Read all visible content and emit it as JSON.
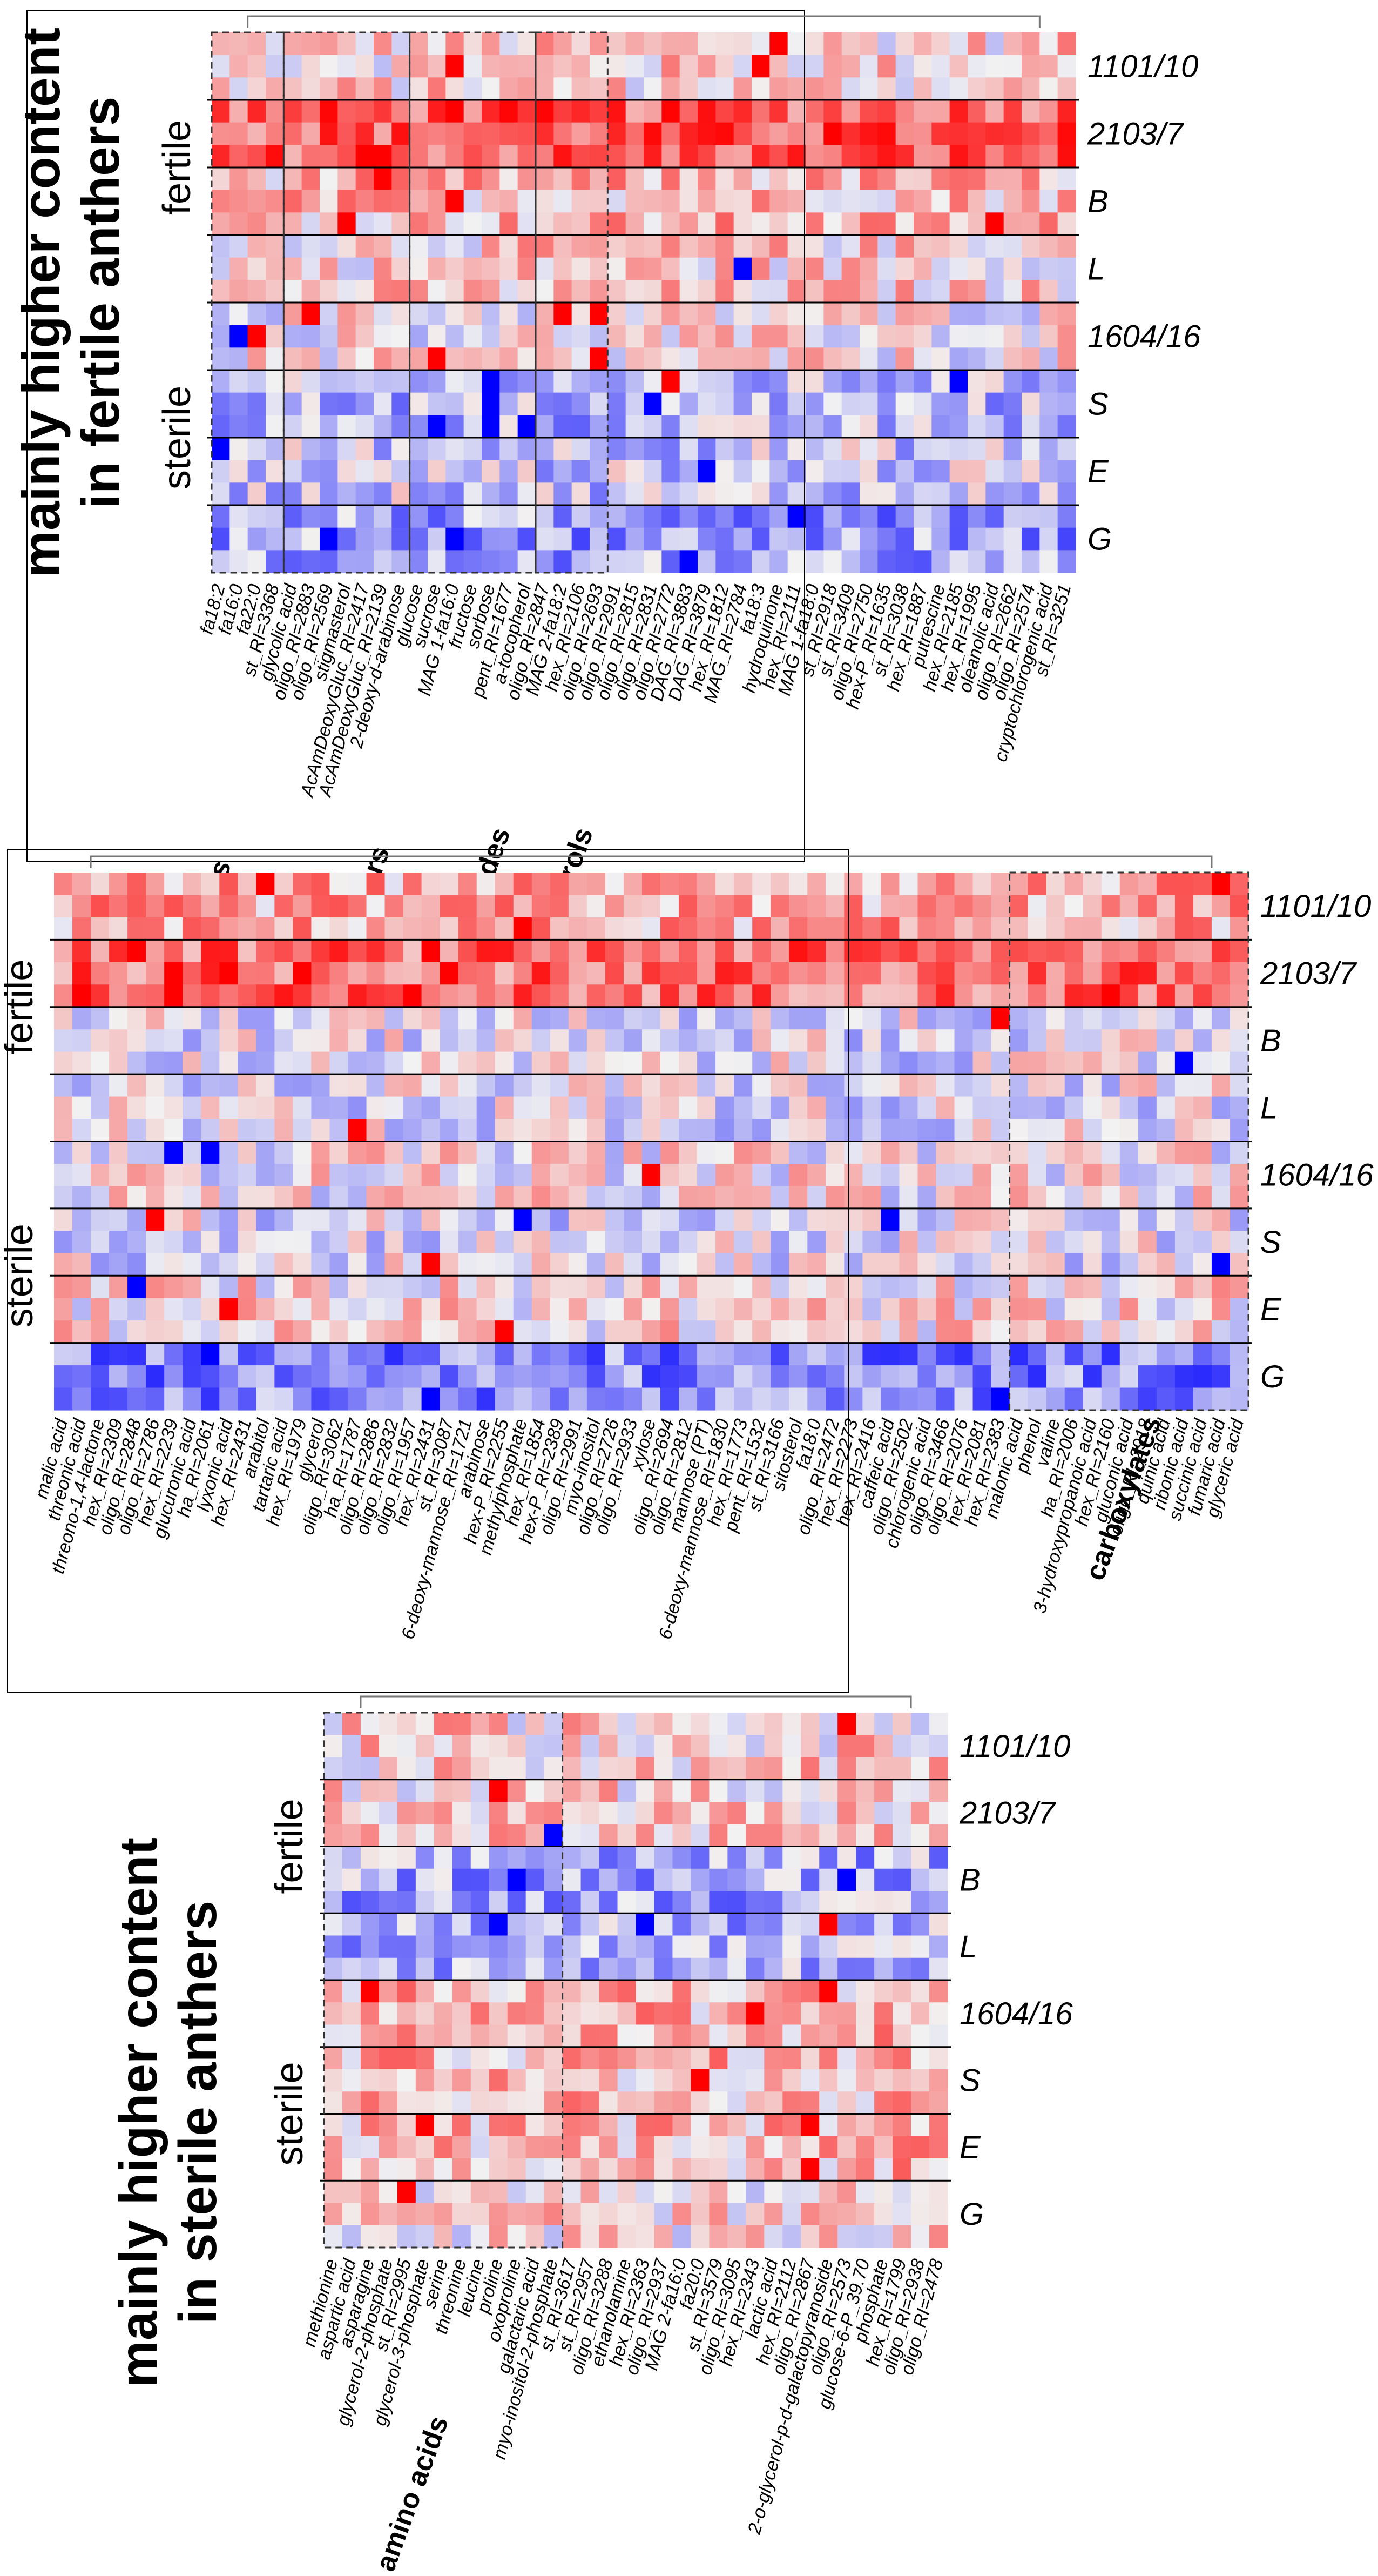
{
  "chart_data": [
    {
      "type": "heatmap",
      "title": "mainly higher content in fertile anthers",
      "rows": [
        "1101/10",
        "2103/7",
        "B",
        "L",
        "1604/16",
        "S",
        "E",
        "G"
      ],
      "row_groups": [
        {
          "name": "fertile",
          "rows": [
            "1101/10",
            "2103/7",
            "B",
            "L"
          ]
        },
        {
          "name": "sterile",
          "rows": [
            "1604/16",
            "S",
            "E",
            "G"
          ]
        }
      ],
      "columns": [
        "fa18:2",
        "fa16:0",
        "fa22:0",
        "st_RI=3368",
        "glycolic acid",
        "oligo_RI=2883",
        "oligo_RI=2569",
        "stigmasterol",
        "AcAmDeoxyGluc_RI=2417",
        "AcAmDeoxyGluc_RI=2139",
        "2-deoxy-d-arabinose",
        "glucose",
        "sucrose",
        "MAG 1-fa16:0",
        "fructose",
        "sorbose",
        "pent_RI=1677",
        "a-tocopherol",
        "oligo_RI=2847",
        "MAG 2-fa18:2",
        "hex_RI=2106",
        "oligo_RI=2693",
        "oligo_RI=2991",
        "oligo_RI=2815",
        "oligo_RI=2831",
        "oligo_RI=2772",
        "DAG_RI=3883",
        "DAG_RI=3879",
        "hex_RI=1812",
        "MAG_RI=2784",
        "fa18:3",
        "hydroquinone",
        "hex_RI=2111",
        "MAG 1-fa18:0",
        "st_RI=2918",
        "st_RI=3409",
        "oligo_RI=2750",
        "hex-P_RI=1635",
        "st_RI=3038",
        "hex_RI=1887",
        "putrescine",
        "hex_RI=2185",
        "hex_RI=1995",
        "oleanolic acid",
        "oligo_RI=2662",
        "oligo_RI=2574",
        "cryptochlorogenic acid",
        "st_RI=3251"
      ],
      "categories": [
        {
          "name": "fatty acids",
          "count": 4
        },
        {
          "name": "main sugars",
          "count": 7
        },
        {
          "name": "oligosaccharides",
          "count": 7
        },
        {
          "name": "acylglycerols",
          "count": 4
        }
      ]
    },
    {
      "type": "heatmap",
      "rows": [
        "1101/10",
        "2103/7",
        "B",
        "L",
        "1604/16",
        "S",
        "E",
        "G"
      ],
      "row_groups": [
        {
          "name": "fertile",
          "rows": [
            "1101/10",
            "2103/7",
            "B",
            "L"
          ]
        },
        {
          "name": "sterile",
          "rows": [
            "1604/16",
            "S",
            "E",
            "G"
          ]
        }
      ],
      "columns": [
        "malic acid",
        "threonic acid",
        "threono-1,4-lactone",
        "hex_RI=2309",
        "oligo_RI=2848",
        "oligo_RI=2786",
        "hex_RI=2239",
        "glucuronic acid",
        "ha_RI=2061",
        "lyxonic acid",
        "hex_RI=2431",
        "arabitol",
        "tartaric acid",
        "hex_RI=1979",
        "glycerol",
        "oligo_RI=3062",
        "ha_RI=1787",
        "oligo_RI=2886",
        "oligo_RI=2832",
        "oligo_RI=1957",
        "hex_RI=2431",
        "st_RI=3087",
        "6-deoxy-mannose_RI=1721",
        "arabinose",
        "hex-P_RI=2255",
        "methylphosphate",
        "hex_RI=1854",
        "hex-P_RI=2389",
        "oligo_RI=2991",
        "myo-inositol",
        "oligo_RI=2726",
        "oligo_RI=2933",
        "xylose",
        "oligo_RI=2694",
        "oligo_RI=2812",
        "mannose (PT)",
        "6-deoxy-mannose_RI=1830",
        "hex_RI=1773",
        "pent_RI=1532",
        "st_RI=3166",
        "sitosterol",
        "fa18:0",
        "oligo_RI=2472",
        "hex_RI=2273",
        "hex_RI=2416",
        "caffeic acid",
        "oligo_RI=2502",
        "chlorogenic acid",
        "oligo_RI=3466",
        "oligo_RI=2076",
        "hex_RI=2081",
        "hex_RI=2383",
        "malonic acid",
        "phenol",
        "valine",
        "ha_RI=2006",
        "3-hydroxypropanoic acid",
        "hex_RI=2160",
        "gluconic acid",
        "oligo_RI=2918",
        "quinic acid",
        "ribonic acid",
        "succinic acid",
        "fumaric acid",
        "glyceric acid"
      ],
      "categories": [
        {
          "name": "carboxylates",
          "count": 13
        }
      ]
    },
    {
      "type": "heatmap",
      "title": "mainly higher content in sterile anthers",
      "rows": [
        "1101/10",
        "2103/7",
        "B",
        "L",
        "1604/16",
        "S",
        "E",
        "G"
      ],
      "row_groups": [
        {
          "name": "fertile",
          "rows": [
            "1101/10",
            "2103/7",
            "B",
            "L"
          ]
        },
        {
          "name": "sterile",
          "rows": [
            "1604/16",
            "S",
            "E",
            "G"
          ]
        }
      ],
      "columns": [
        "methionine",
        "aspartic acid",
        "asparagine",
        "glycerol-2-phosphate",
        "st_RI=2995",
        "glycerol-3-phosphate",
        "serine",
        "threonine",
        "leucine",
        "proline",
        "oxoproline",
        "galactaric acid",
        "myo-inositol-2-phosphate",
        "st_RI=3617",
        "st_RI=2957",
        "oligo_RI=3288",
        "ethanolamine",
        "hex_RI=2363",
        "oligo_RI=2937",
        "MAG 2-fa16:0",
        "fa20:0",
        "st_RI=3579",
        "oligo_RI=3095",
        "hex_RI=2343",
        "lactic acid",
        "hex_RI=2112",
        "oligo_RI=2867",
        "2-o-glycerol-p-d-galactopyranoside",
        "oligo_RI=2573",
        "glucose-6-P_39.70",
        "phosphate",
        "hex_RI=1799",
        "oligo_RI=2938",
        "oligo_RI=2478"
      ],
      "categories": [
        {
          "name": "amino acids",
          "count": 13
        }
      ]
    }
  ],
  "colors": {
    "high": "#ff0000",
    "mid": "#f0f0f0",
    "low": "#0000ff",
    "border": "#000000"
  }
}
